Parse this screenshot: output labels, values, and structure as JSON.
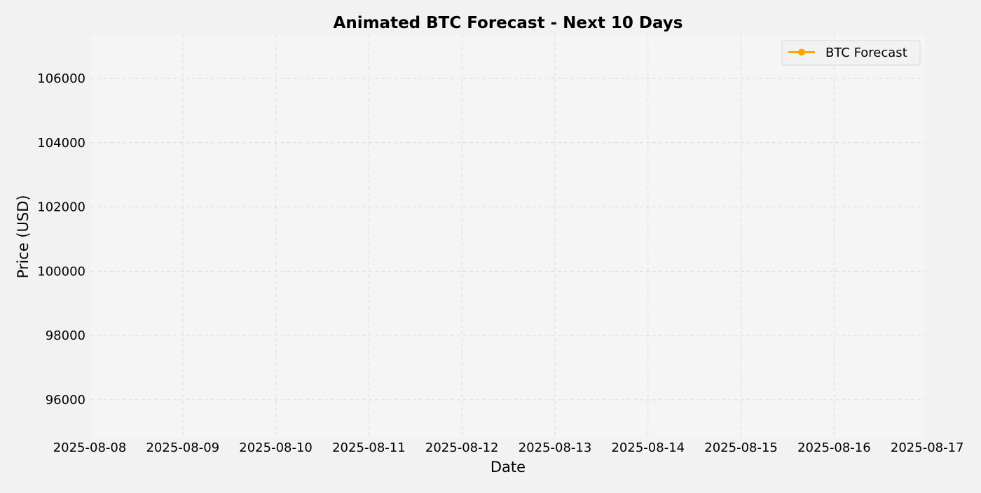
{
  "chart_data": {
    "type": "line",
    "title": "Animated BTC Forecast - Next 10 Days",
    "xlabel": "Date",
    "ylabel": "Price (USD)",
    "x_tick_labels": [
      "2025-08-08",
      "2025-08-09",
      "2025-08-10",
      "2025-08-11",
      "2025-08-12",
      "2025-08-13",
      "2025-08-14",
      "2025-08-15",
      "2025-08-16",
      "2025-08-17"
    ],
    "y_ticks": [
      96000,
      98000,
      100000,
      102000,
      104000,
      106000
    ],
    "xlim": [
      "2025-08-08",
      "2025-08-17"
    ],
    "ylim": [
      94800,
      107350
    ],
    "grid": true,
    "legend_position": "top-right",
    "series": [
      {
        "name": "BTC Forecast",
        "color": "#ffa500",
        "marker": "circle",
        "x": [],
        "values": []
      }
    ],
    "colors": {
      "figure_background": "#f2f2f2",
      "plot_background": "#f5f5f5",
      "grid": "#dcdcdc",
      "text": "#000000"
    }
  }
}
